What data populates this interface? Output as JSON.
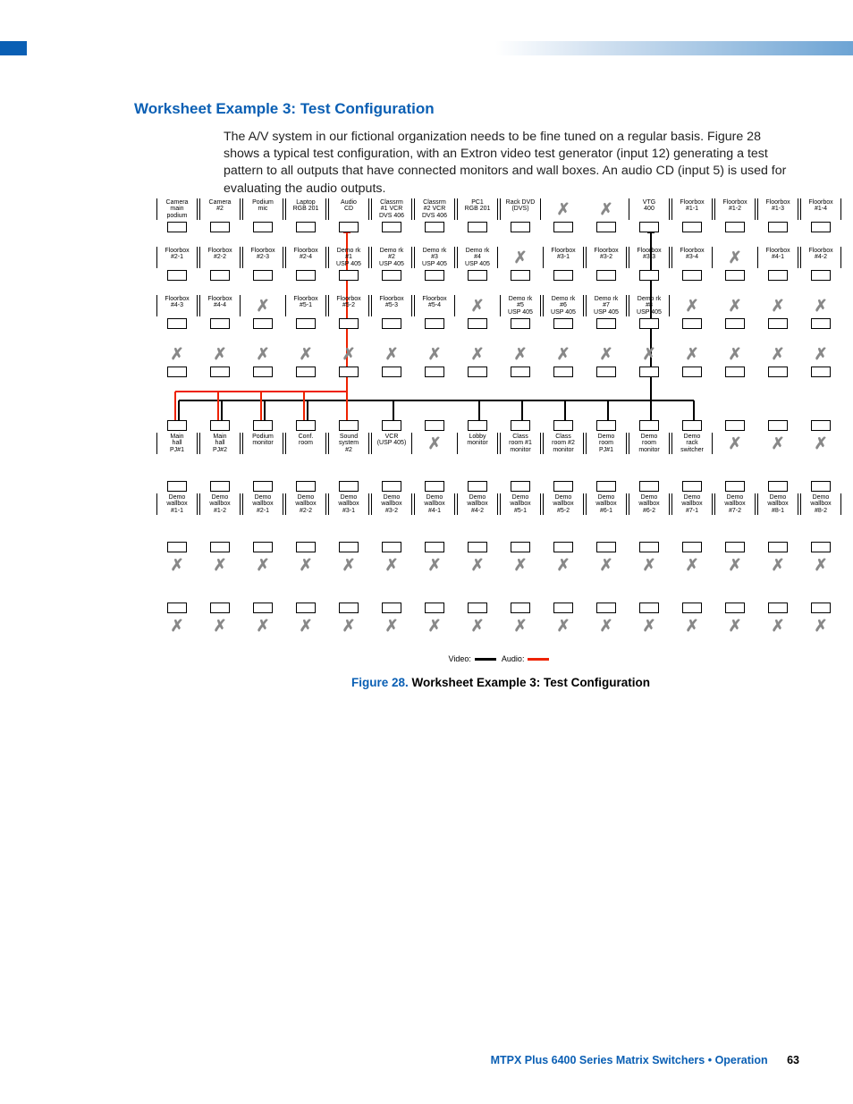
{
  "title": "Worksheet Example 3: Test Configuration",
  "paragraph": "The A/V system in our fictional organization needs to be fine tuned on a regular basis. Figure 28 shows a typical test configuration, with an Extron video test generator (input 12) generating a test pattern to all outputs that have connected monitors and wall boxes. An audio CD (input 5) is used for evaluating the audio outputs.",
  "figure_label": "Figure 28.",
  "figure_title": "Worksheet Example 3: Test Configuration",
  "legend_video": "Video:",
  "legend_audio": "Audio:",
  "footer_text": "MTPX Plus 6400 Series Matrix Switchers • Operation",
  "page_number": "63",
  "colors": {
    "accent": "#0a5fb4",
    "video_line": "#000000",
    "audio_line": "#ee2200",
    "x_mark": "#888888"
  },
  "diagram": {
    "input_rows": [
      [
        "Camera\nmain\npodium",
        "Camera\n#2",
        "Podium\nmic",
        "Laptop\nRGB 201",
        "Audio\nCD",
        "Classrm\n#1 VCR\nDVS 406",
        "Classrm\n#2 VCR\nDVS 406",
        "PC1\nRGB 201",
        "Rack DVD\n(DVS)",
        "X",
        "X",
        "VTG\n400",
        "Floorbox\n#1-1",
        "Floorbox\n#1-2",
        "Floorbox\n#1-3",
        "Floorbox\n#1-4"
      ],
      [
        "Floorbox\n#2-1",
        "Floorbox\n#2-2",
        "Floorbox\n#2-3",
        "Floorbox\n#2-4",
        "Demo rk\n#1\nUSP 405",
        "Demo rk\n#2\nUSP 405",
        "Demo rk\n#3\nUSP 405",
        "Demo rk\n#4\nUSP 405",
        "X",
        "Floorbox\n#3-1",
        "Floorbox\n#3-2",
        "Floorbox\n#3-3",
        "Floorbox\n#3-4",
        "X",
        "Floorbox\n#4-1",
        "Floorbox\n#4-2"
      ],
      [
        "Floorbox\n#4-3",
        "Floorbox\n#4-4",
        "X",
        "Floorbox\n#5-1",
        "Floorbox\n#5-2",
        "Floorbox\n#5-3",
        "Floorbox\n#5-4",
        "X",
        "Demo rk\n#5\nUSP 405",
        "Demo rk\n#6\nUSP 405",
        "Demo rk\n#7\nUSP 405",
        "Demo rk\n#8\nUSP 405",
        "X",
        "X",
        "X",
        "X"
      ],
      [
        "X",
        "X",
        "X",
        "X",
        "X",
        "X",
        "X",
        "X",
        "X",
        "X",
        "X",
        "X",
        "X",
        "X",
        "X",
        "X"
      ]
    ],
    "output_rows": [
      [
        "Main\nhall\nPJ#1",
        "Main\nhall\nPJ#2",
        "Podium\nmonitor",
        "Conf.\nroom",
        "Sound\nsystem\n#2",
        "VCR\n(USP 405)",
        "X",
        "Lobby\nmonitor",
        "Class\nroom #1\nmonitor",
        "Class\nroom #2\nmonitor",
        "Demo\nroom\nPJ#1",
        "Demo\nroom\nmonitor",
        "Demo\nrack\nswitcher",
        "X",
        "X",
        "X"
      ],
      [
        "Demo\nwallbox\n#1-1",
        "Demo\nwallbox\n#1-2",
        "Demo\nwallbox\n#2-1",
        "Demo\nwallbox\n#2-2",
        "Demo\nwallbox\n#3-1",
        "Demo\nwallbox\n#3-2",
        "Demo\nwallbox\n#4-1",
        "Demo\nwallbox\n#4-2",
        "Demo\nwallbox\n#5-1",
        "Demo\nwallbox\n#5-2",
        "Demo\nwallbox\n#6-1",
        "Demo\nwallbox\n#6-2",
        "Demo\nwallbox\n#7-1",
        "Demo\nwallbox\n#7-2",
        "Demo\nwallbox\n#8-1",
        "Demo\nwallbox\n#8-2"
      ],
      [
        "X",
        "X",
        "X",
        "X",
        "X",
        "X",
        "X",
        "X",
        "X",
        "X",
        "X",
        "X",
        "X",
        "X",
        "X",
        "X"
      ],
      [
        "X",
        "X",
        "X",
        "X",
        "X",
        "X",
        "X",
        "X",
        "X",
        "X",
        "X",
        "X",
        "X",
        "X",
        "X",
        "X"
      ]
    ],
    "video_source_col": 11,
    "audio_source_col": 4,
    "video_dest_cols_row0": [
      0,
      1,
      2,
      3,
      5,
      7,
      8,
      9,
      10,
      11,
      12
    ],
    "audio_dest_cols_row0": [
      0,
      1,
      2,
      3,
      4
    ]
  }
}
